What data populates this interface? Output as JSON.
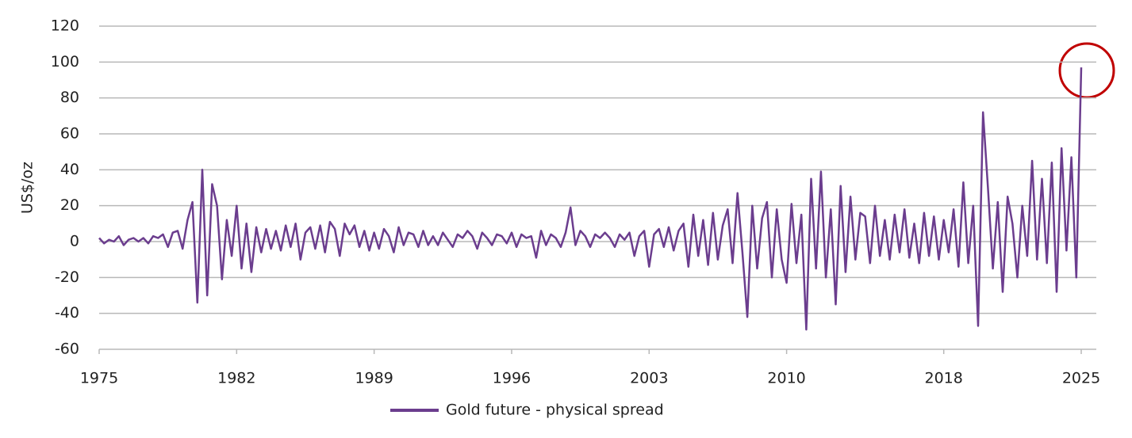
{
  "chart_data": {
    "type": "line",
    "y_label": "US$/oz",
    "x": [
      1975,
      1975.25,
      1975.5,
      1975.75,
      1976,
      1976.25,
      1976.5,
      1976.75,
      1977,
      1977.25,
      1977.5,
      1977.75,
      1978,
      1978.25,
      1978.5,
      1978.75,
      1979,
      1979.25,
      1979.5,
      1979.75,
      1980,
      1980.25,
      1980.5,
      1980.75,
      1981,
      1981.25,
      1981.5,
      1981.75,
      1982,
      1982.25,
      1982.5,
      1982.75,
      1983,
      1983.25,
      1983.5,
      1983.75,
      1984,
      1984.25,
      1984.5,
      1984.75,
      1985,
      1985.25,
      1985.5,
      1985.75,
      1986,
      1986.25,
      1986.5,
      1986.75,
      1987,
      1987.25,
      1987.5,
      1987.75,
      1988,
      1988.25,
      1988.5,
      1988.75,
      1989,
      1989.25,
      1989.5,
      1989.75,
      1990,
      1990.25,
      1990.5,
      1990.75,
      1991,
      1991.25,
      1991.5,
      1991.75,
      1992,
      1992.25,
      1992.5,
      1992.75,
      1993,
      1993.25,
      1993.5,
      1993.75,
      1994,
      1994.25,
      1994.5,
      1994.75,
      1995,
      1995.25,
      1995.5,
      1995.75,
      1996,
      1996.25,
      1996.5,
      1996.75,
      1997,
      1997.25,
      1997.5,
      1997.75,
      1998,
      1998.25,
      1998.5,
      1998.75,
      1999,
      1999.25,
      1999.5,
      1999.75,
      2000,
      2000.25,
      2000.5,
      2000.75,
      2001,
      2001.25,
      2001.5,
      2001.75,
      2002,
      2002.25,
      2002.5,
      2002.75,
      2003,
      2003.25,
      2003.5,
      2003.75,
      2004,
      2004.25,
      2004.5,
      2004.75,
      2005,
      2005.25,
      2005.5,
      2005.75,
      2006,
      2006.25,
      2006.5,
      2006.75,
      2007,
      2007.25,
      2007.5,
      2007.75,
      2008,
      2008.25,
      2008.5,
      2008.75,
      2009,
      2009.25,
      2009.5,
      2009.75,
      2010,
      2010.25,
      2010.5,
      2010.75,
      2011,
      2011.25,
      2011.5,
      2011.75,
      2012,
      2012.25,
      2012.5,
      2012.75,
      2013,
      2013.25,
      2013.5,
      2013.75,
      2014,
      2014.25,
      2014.5,
      2014.75,
      2015,
      2015.25,
      2015.5,
      2015.75,
      2016,
      2016.25,
      2016.5,
      2016.75,
      2017,
      2017.25,
      2017.5,
      2017.75,
      2018,
      2018.25,
      2018.5,
      2018.75,
      2019,
      2019.25,
      2019.5,
      2019.75,
      2020,
      2020.25,
      2020.5,
      2020.75,
      2021,
      2021.25,
      2021.5,
      2021.75,
      2022,
      2022.25,
      2022.5,
      2022.75,
      2023,
      2023.25,
      2023.5,
      2023.75,
      2024,
      2024.25,
      2024.5,
      2024.75,
      2025
    ],
    "series": [
      {
        "name": "Gold future - physical spread",
        "color": "#6b3d8e",
        "values": [
          2,
          -1,
          1,
          0,
          3,
          -2,
          1,
          2,
          0,
          2,
          -1,
          3,
          2,
          4,
          -3,
          5,
          6,
          -4,
          12,
          22,
          -34,
          40,
          -30,
          32,
          20,
          -21,
          12,
          -8,
          20,
          -15,
          10,
          -17,
          8,
          -6,
          7,
          -4,
          6,
          -5,
          9,
          -3,
          10,
          -10,
          5,
          8,
          -4,
          9,
          -6,
          11,
          7,
          -8,
          10,
          4,
          9,
          -3,
          6,
          -5,
          5,
          -4,
          7,
          3,
          -6,
          8,
          -2,
          5,
          4,
          -3,
          6,
          -2,
          3,
          -2,
          5,
          1,
          -3,
          4,
          2,
          6,
          3,
          -4,
          5,
          2,
          -2,
          4,
          3,
          -1,
          5,
          -3,
          4,
          2,
          3,
          -9,
          6,
          -2,
          4,
          2,
          -3,
          5,
          19,
          -2,
          6,
          3,
          -3,
          4,
          2,
          5,
          2,
          -3,
          4,
          1,
          5,
          -8,
          3,
          6,
          -14,
          4,
          7,
          -3,
          8,
          -5,
          6,
          10,
          -14,
          15,
          -8,
          12,
          -13,
          16,
          -10,
          9,
          18,
          -12,
          27,
          -6,
          -42,
          20,
          -15,
          13,
          22,
          -20,
          18,
          -10,
          -23,
          21,
          -12,
          15,
          -49,
          35,
          -15,
          39,
          -20,
          18,
          -35,
          31,
          -17,
          25,
          -10,
          16,
          14,
          -12,
          20,
          -8,
          12,
          -10,
          15,
          -6,
          18,
          -9,
          10,
          -12,
          16,
          -8,
          14,
          -10,
          12,
          -6,
          18,
          -14,
          33,
          -12,
          20,
          -47,
          72,
          30,
          -15,
          22,
          -28,
          25,
          10,
          -20,
          20,
          -8,
          45,
          -10,
          35,
          -12,
          44,
          -28,
          52,
          -5,
          47,
          -20,
          97
        ]
      }
    ],
    "xlim": [
      1975,
      2025
    ],
    "xticks": [
      1975,
      1982,
      1989,
      1996,
      2003,
      2010,
      2018,
      2025
    ],
    "ylim": [
      -60,
      120
    ],
    "yticks": [
      -60,
      -40,
      -20,
      0,
      20,
      40,
      60,
      80,
      100,
      120
    ],
    "grid": true,
    "legend": "bottom"
  }
}
